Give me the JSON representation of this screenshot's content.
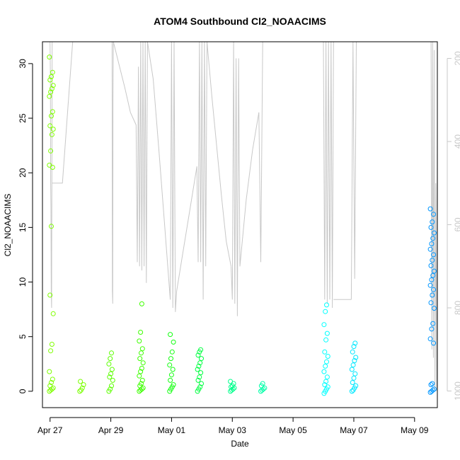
{
  "chart_data": {
    "type": "scatter",
    "title": "ATOM4 Southbound Cl2_NOAACIMS",
    "xlabel": "Date",
    "ylabel": "Cl2_NOAACIMS",
    "xlim": [
      "2018-04-26 18:00",
      "2018-05-09 18:00"
    ],
    "ylim": [
      -1.5,
      32
    ],
    "y2lim": [
      1040,
      160
    ],
    "x_ticks": [
      {
        "date": "2018-04-27",
        "label": "Apr 27"
      },
      {
        "date": "2018-04-29",
        "label": "Apr 29"
      },
      {
        "date": "2018-05-01",
        "label": "May 01"
      },
      {
        "date": "2018-05-03",
        "label": "May 03"
      },
      {
        "date": "2018-05-05",
        "label": "May 05"
      },
      {
        "date": "2018-05-07",
        "label": "May 07"
      },
      {
        "date": "2018-05-09",
        "label": "May 09"
      }
    ],
    "y_ticks": [
      "0",
      "5",
      "10",
      "15",
      "20",
      "25",
      "30"
    ],
    "y2_ticks": [
      "200",
      "400",
      "600",
      "800",
      "1000"
    ],
    "y2_tick_values": [
      200,
      400,
      600,
      800,
      1000
    ],
    "grid": false,
    "legend": "none",
    "point_color_scale": [
      "#7fff00",
      "#00ff00",
      "#00ff7f",
      "#00ffff",
      "#007fff"
    ],
    "clusters": [
      {
        "t": "2018-04-27 01:00",
        "values": [
          0.0,
          0.1,
          0.2,
          0.3,
          0.5,
          0.8,
          1.1,
          1.8,
          3.7,
          4.3,
          7.1,
          8.8,
          15.1,
          20.5,
          20.7,
          22.0,
          23.5,
          24.0,
          24.3,
          25.2,
          25.6,
          27.0,
          27.4,
          27.7,
          28.0,
          28.5,
          28.8,
          29.2,
          30.6
        ],
        "color": "#7fff00"
      },
      {
        "t": "2018-04-28 01:00",
        "values": [
          0.0,
          0.1,
          0.3,
          0.6,
          0.9
        ],
        "color": "#7aff00"
      },
      {
        "t": "2018-04-29 00:00",
        "values": [
          0.0,
          0.2,
          0.5,
          1.0,
          1.3,
          1.6,
          2.0,
          2.5,
          3.0,
          3.5
        ],
        "color": "#5cff00"
      },
      {
        "t": "2018-04-30 00:00",
        "values": [
          0.0,
          0.1,
          0.2,
          0.3,
          0.5,
          0.7,
          1.0,
          1.4,
          1.8,
          2.1,
          2.6,
          3.0,
          3.5,
          3.9,
          4.6,
          5.4,
          8.0
        ],
        "color": "#3dff00"
      },
      {
        "t": "2018-05-01 00:00",
        "values": [
          0.0,
          0.2,
          0.4,
          0.6,
          1.0,
          1.5,
          2.0,
          2.4,
          3.0,
          3.6,
          4.5,
          5.2
        ],
        "color": "#14ff12"
      },
      {
        "t": "2018-05-01 22:00",
        "values": [
          0.0,
          0.2,
          0.4,
          0.7,
          1.0,
          1.3,
          1.7,
          2.0,
          2.3,
          2.6,
          3.0,
          3.3,
          3.6,
          3.8
        ],
        "color": "#00ff40"
      },
      {
        "t": "2018-05-03 00:00",
        "values": [
          0.0,
          0.1,
          0.2,
          0.3,
          0.4,
          0.5,
          0.7,
          0.9
        ],
        "color": "#00ff8c"
      },
      {
        "t": "2018-05-04 00:00",
        "values": [
          0.0,
          0.1,
          0.2,
          0.3,
          0.5,
          0.7
        ],
        "color": "#00ffa8"
      },
      {
        "t": "2018-05-06 02:00",
        "values": [
          -0.2,
          0.0,
          0.2,
          0.4,
          0.6,
          0.9,
          1.3,
          1.8,
          2.3,
          2.7,
          3.2,
          3.6,
          4.7,
          5.3,
          6.1,
          7.3,
          7.9
        ],
        "color": "#00ffff"
      },
      {
        "t": "2018-05-07 00:00",
        "values": [
          0.0,
          0.1,
          0.3,
          0.5,
          0.8,
          1.2,
          1.6,
          2.0,
          2.4,
          2.8,
          3.1,
          3.6,
          4.1,
          4.4
        ],
        "color": "#00e8ff"
      },
      {
        "t": "2018-05-09 14:00",
        "values": [
          -0.1,
          0.0,
          0.1,
          0.2,
          0.6,
          0.7,
          4.4,
          4.8,
          5.7,
          6.2,
          7.6,
          8.1,
          8.8,
          9.3,
          9.7,
          10.2,
          10.6,
          11.0,
          11.5,
          12.0,
          12.5,
          13.0,
          13.5,
          14.0,
          14.5,
          15.0,
          15.5,
          16.2,
          16.7
        ],
        "color": "#0096ff"
      }
    ],
    "pressure_segments": [
      {
        "t0": "2018-04-27 00:00",
        "t1": "2018-04-27 01:40",
        "p": [
          160,
          240,
          500,
          560,
          760,
          800,
          500,
          160
        ]
      },
      {
        "t0": "2018-04-27 01:40",
        "t1": "2018-04-28 02:00",
        "p": [
          500,
          500,
          160,
          160
        ]
      },
      {
        "t0": "2018-04-28 02:00",
        "t1": "2018-04-29 01:00",
        "p": [
          160,
          160,
          160
        ]
      },
      {
        "t0": "2018-04-29 01:00",
        "t1": "2018-04-29 02:00",
        "p": [
          160,
          760,
          790,
          300,
          160
        ]
      },
      {
        "t0": "2018-04-29 02:00",
        "t1": "2018-04-29 20:00",
        "p": [
          160,
          215,
          270,
          330,
          360
        ]
      },
      {
        "t0": "2018-04-29 20:00",
        "t1": "2018-04-30 05:00",
        "p": [
          360,
          690,
          220,
          700,
          160,
          710,
          160,
          700,
          160,
          740,
          160
        ]
      },
      {
        "t0": "2018-04-30 05:00",
        "t1": "2018-04-30 23:00",
        "p": [
          160,
          250,
          420,
          600,
          780
        ]
      },
      {
        "t0": "2018-04-30 23:00",
        "t1": "2018-05-01 04:00",
        "p": [
          780,
          160,
          800,
          160,
          810,
          760
        ]
      },
      {
        "t0": "2018-05-01 04:00",
        "t1": "2018-05-01 20:00",
        "p": [
          760,
          660,
          560,
          460
        ]
      },
      {
        "t0": "2018-05-01 20:00",
        "t1": "2018-05-02 04:00",
        "p": [
          460,
          690,
          160,
          690,
          160,
          780,
          160,
          700,
          160
        ]
      },
      {
        "t0": "2018-05-02 04:00",
        "t1": "2018-05-02 23:00",
        "p": [
          160,
          290,
          410,
          530,
          640,
          700
        ]
      },
      {
        "t0": "2018-05-02 23:00",
        "t1": "2018-05-03 06:00",
        "p": [
          700,
          780,
          160,
          790,
          200,
          820,
          200,
          700
        ]
      },
      {
        "t0": "2018-05-03 06:00",
        "t1": "2018-05-03 21:00",
        "p": [
          700,
          540,
          420,
          330
        ]
      },
      {
        "t0": "2018-05-03 21:00",
        "t1": "2018-05-04 00:00",
        "p": [
          330,
          690,
          160
        ]
      },
      {
        "t0": "2018-05-04 00:00",
        "t1": "2018-05-06 00:00",
        "p": [
          160,
          160,
          160
        ]
      },
      {
        "t0": "2018-05-06 00:00",
        "t1": "2018-05-06 08:00",
        "p": [
          160,
          780,
          160,
          790,
          160,
          780,
          160,
          800,
          160
        ]
      },
      {
        "t0": "2018-05-06 08:00",
        "t1": "2018-05-06 22:00",
        "p": [
          780,
          780
        ]
      },
      {
        "t0": "2018-05-06 22:00",
        "t1": "2018-05-07 02:00",
        "p": [
          780,
          160,
          730,
          160
        ]
      },
      {
        "t0": "2018-05-07 02:00",
        "t1": "2018-05-09 13:00",
        "p": [
          160,
          160
        ]
      },
      {
        "t0": "2018-05-09 13:00",
        "t1": "2018-05-09 18:00",
        "p": [
          160,
          900,
          160,
          920,
          180,
          1000,
          500,
          1000,
          380
        ]
      }
    ]
  }
}
